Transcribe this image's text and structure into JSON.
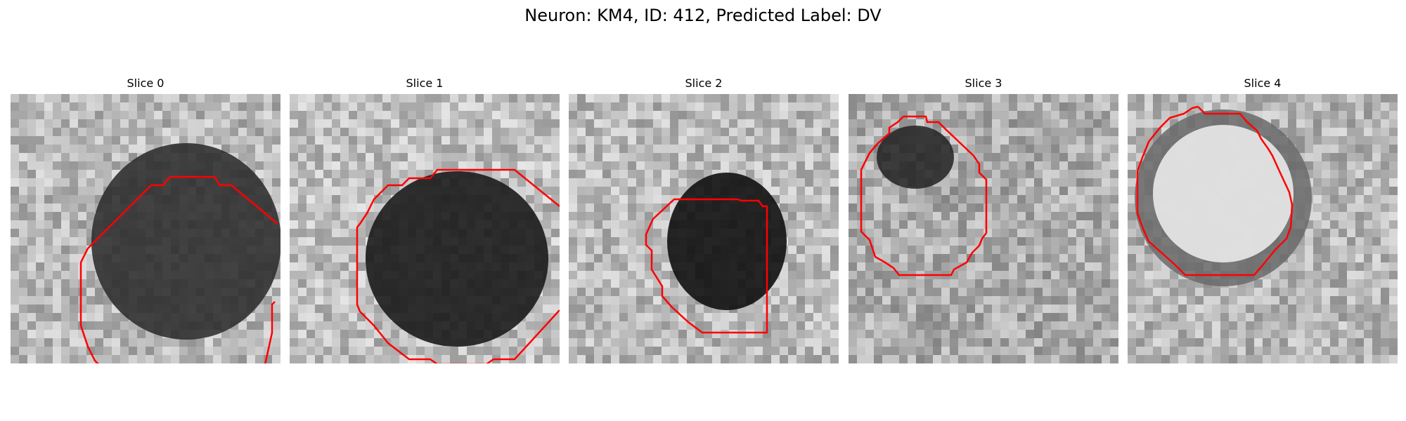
{
  "figure": {
    "title": "Neuron: KM4, ID: 412, Predicted Label: DV"
  },
  "slices": [
    {
      "title": "Slice 0"
    },
    {
      "title": "Slice 1"
    },
    {
      "title": "Slice 2"
    },
    {
      "title": "Slice 3"
    },
    {
      "title": "Slice 4"
    }
  ],
  "colors": {
    "contour": "#ff0000",
    "background": "#ffffff"
  }
}
